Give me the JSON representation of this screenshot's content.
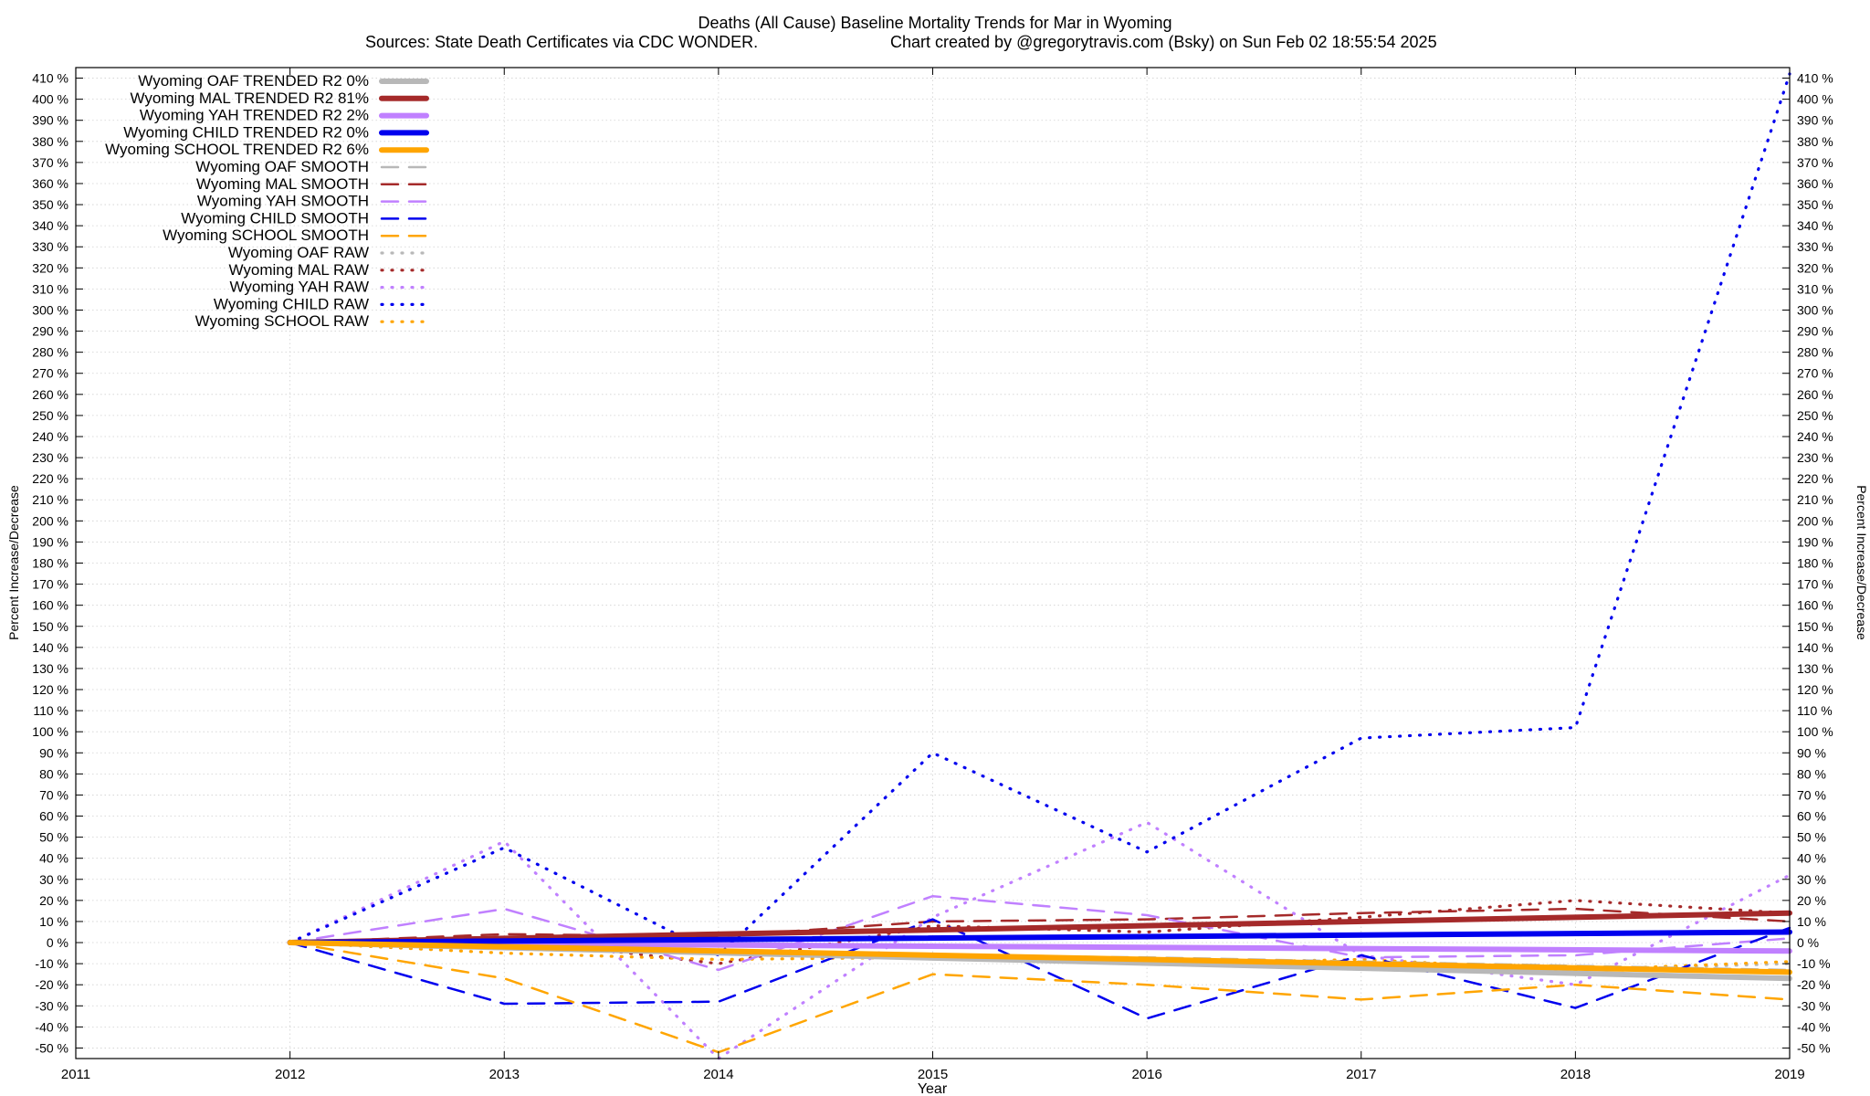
{
  "chart_data": {
    "type": "line",
    "title": "Deaths (All Cause)  Baseline Mortality Trends for Mar in Wyoming",
    "subtitle_left": "Sources: State Death Certificates via CDC WONDER.",
    "subtitle_right": "Chart created by @gregorytravis.com (Bsky) on Sun Feb 02 18:55:54 2025",
    "xlabel": "Year",
    "ylabel": "Percent Increase/Decrease",
    "ylabel_right": "Percent Increase/Decrease",
    "xlim": [
      2011,
      2019
    ],
    "ylim": [
      -55,
      415
    ],
    "x_ticks": [
      "2011",
      "2012",
      "2013",
      "2014",
      "2015",
      "2016",
      "2017",
      "2018",
      "2019"
    ],
    "y_ticks": [
      "410 %",
      "400 %",
      "390 %",
      "380 %",
      "370 %",
      "360 %",
      "350 %",
      "340 %",
      "330 %",
      "320 %",
      "310 %",
      "300 %",
      "290 %",
      "280 %",
      "270 %",
      "260 %",
      "250 %",
      "240 %",
      "230 %",
      "220 %",
      "210 %",
      "200 %",
      "190 %",
      "180 %",
      "170 %",
      "160 %",
      "150 %",
      "140 %",
      "130 %",
      "120 %",
      "110 %",
      "100 %",
      "90 %",
      "80 %",
      "70 %",
      "60 %",
      "50 %",
      "40 %",
      "30 %",
      "20 %",
      "10 %",
      "0 %",
      "-10 %",
      "-20 %",
      "-30 %",
      "-40 %",
      "-50 %"
    ],
    "grid": true,
    "legend_position": "top-left",
    "series": [
      {
        "name": "Wyoming OAF TRENDED R2  0%",
        "color": "#b8b8b8",
        "style": "solid",
        "x": [
          2012,
          2019
        ],
        "y": [
          0,
          -17
        ]
      },
      {
        "name": "Wyoming MAL TRENDED R2  81%",
        "color": "#a52a2a",
        "style": "solid",
        "x": [
          2012,
          2019
        ],
        "y": [
          0,
          14
        ]
      },
      {
        "name": "Wyoming YAH TRENDED R2  2%",
        "color": "#c080ff",
        "style": "solid",
        "x": [
          2012,
          2019
        ],
        "y": [
          0,
          -4
        ]
      },
      {
        "name": "Wyoming CHILD TRENDED R2  0%",
        "color": "#0000ee",
        "style": "solid",
        "x": [
          2012,
          2019
        ],
        "y": [
          0,
          5
        ]
      },
      {
        "name": "Wyoming SCHOOL TRENDED R2  6%",
        "color": "#ffa500",
        "style": "solid",
        "x": [
          2012,
          2019
        ],
        "y": [
          0,
          -14
        ]
      },
      {
        "name": "Wyoming OAF SMOOTH",
        "color": "#b8b8b8",
        "style": "dashed",
        "x": [
          2012,
          2013,
          2014,
          2015,
          2016,
          2017,
          2018,
          2019
        ],
        "y": [
          0,
          -3,
          -5,
          -6,
          -7,
          -9,
          -11,
          -13
        ]
      },
      {
        "name": "Wyoming MAL SMOOTH",
        "color": "#a52a2a",
        "style": "dashed",
        "x": [
          2012,
          2013,
          2014,
          2015,
          2016,
          2017,
          2018,
          2019
        ],
        "y": [
          0,
          4,
          3,
          10,
          11,
          14,
          16,
          10
        ]
      },
      {
        "name": "Wyoming YAH SMOOTH",
        "color": "#c080ff",
        "style": "dashed",
        "x": [
          2012,
          2013,
          2014,
          2015,
          2016,
          2017,
          2018,
          2019
        ],
        "y": [
          0,
          16,
          -13,
          22,
          13,
          -7,
          -6,
          2
        ]
      },
      {
        "name": "Wyoming CHILD SMOOTH",
        "color": "#0000ee",
        "style": "dashed",
        "x": [
          2012,
          2013,
          2014,
          2015,
          2016,
          2017,
          2018,
          2019
        ],
        "y": [
          0,
          -29,
          -28,
          11,
          -36,
          -6,
          -31,
          7
        ]
      },
      {
        "name": "Wyoming SCHOOL SMOOTH",
        "color": "#ffa500",
        "style": "dashed",
        "x": [
          2012,
          2013,
          2014,
          2015,
          2016,
          2017,
          2018,
          2019
        ],
        "y": [
          0,
          -17,
          -52,
          -15,
          -20,
          -27,
          -20,
          -27
        ]
      },
      {
        "name": "Wyoming OAF RAW",
        "color": "#b8b8b8",
        "style": "dotted",
        "x": [
          2012,
          2013,
          2014,
          2015,
          2016,
          2017,
          2018,
          2019
        ],
        "y": [
          0,
          -2,
          -5,
          -7,
          -9,
          -11,
          -13,
          -10
        ]
      },
      {
        "name": "Wyoming MAL RAW",
        "color": "#a52a2a",
        "style": "dotted",
        "x": [
          2012,
          2013,
          2014,
          2015,
          2016,
          2017,
          2018,
          2019
        ],
        "y": [
          0,
          2,
          -10,
          8,
          5,
          12,
          20,
          14
        ]
      },
      {
        "name": "Wyoming YAH RAW",
        "color": "#c080ff",
        "style": "dotted",
        "x": [
          2012,
          2013,
          2014,
          2015,
          2016,
          2017,
          2018,
          2019
        ],
        "y": [
          0,
          48,
          -55,
          12,
          57,
          -6,
          -20,
          32
        ]
      },
      {
        "name": "Wyoming CHILD RAW",
        "color": "#0000ee",
        "style": "dotted",
        "x": [
          2012,
          2013,
          2014,
          2015,
          2016,
          2017,
          2018,
          2019
        ],
        "y": [
          0,
          45,
          -6,
          90,
          43,
          97,
          102,
          412
        ]
      },
      {
        "name": "Wyoming SCHOOL RAW",
        "color": "#ffa500",
        "style": "dotted",
        "x": [
          2012,
          2013,
          2014,
          2015,
          2016,
          2017,
          2018,
          2019
        ],
        "y": [
          0,
          -5,
          -8,
          -7,
          -10,
          -8,
          -13,
          -9
        ]
      }
    ]
  }
}
